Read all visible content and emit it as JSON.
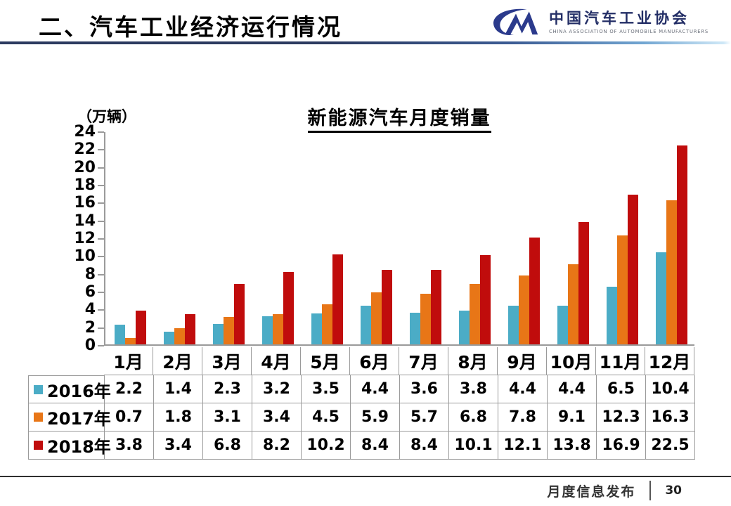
{
  "header": {
    "title": "二、汽车工业经济运行情况"
  },
  "logo": {
    "name_cn": "中国汽车工业协会",
    "name_en": "CHINA ASSOCIATION OF AUTOMOBILE MANUFACTURERS",
    "mark_color": "#2b3a8c"
  },
  "chart_data": {
    "type": "bar",
    "title": "新能源汽车月度销量",
    "unit_label": "（万辆）",
    "categories": [
      "1月",
      "2月",
      "3月",
      "4月",
      "5月",
      "6月",
      "7月",
      "8月",
      "9月",
      "10月",
      "11月",
      "12月"
    ],
    "series": [
      {
        "name": "2016年",
        "color": "#4BACC6",
        "values": [
          2.2,
          1.4,
          2.3,
          3.2,
          3.5,
          4.4,
          3.6,
          3.8,
          4.4,
          4.4,
          6.5,
          10.4
        ]
      },
      {
        "name": "2017年",
        "color": "#E87617",
        "values": [
          0.7,
          1.8,
          3.1,
          3.4,
          4.5,
          5.9,
          5.7,
          6.8,
          7.8,
          9.1,
          12.3,
          16.3
        ]
      },
      {
        "name": "2018年",
        "color": "#C00C0C",
        "values": [
          3.8,
          3.4,
          6.8,
          8.2,
          10.2,
          8.4,
          8.4,
          10.1,
          12.1,
          13.8,
          16.9,
          22.5
        ]
      }
    ],
    "ylim": [
      0,
      24
    ],
    "ytick_step": 2,
    "grid": false,
    "legend_position": "table-left",
    "axis_color": "#9a9a9a"
  },
  "footer": {
    "label": "月度信息发布",
    "page": "30"
  }
}
